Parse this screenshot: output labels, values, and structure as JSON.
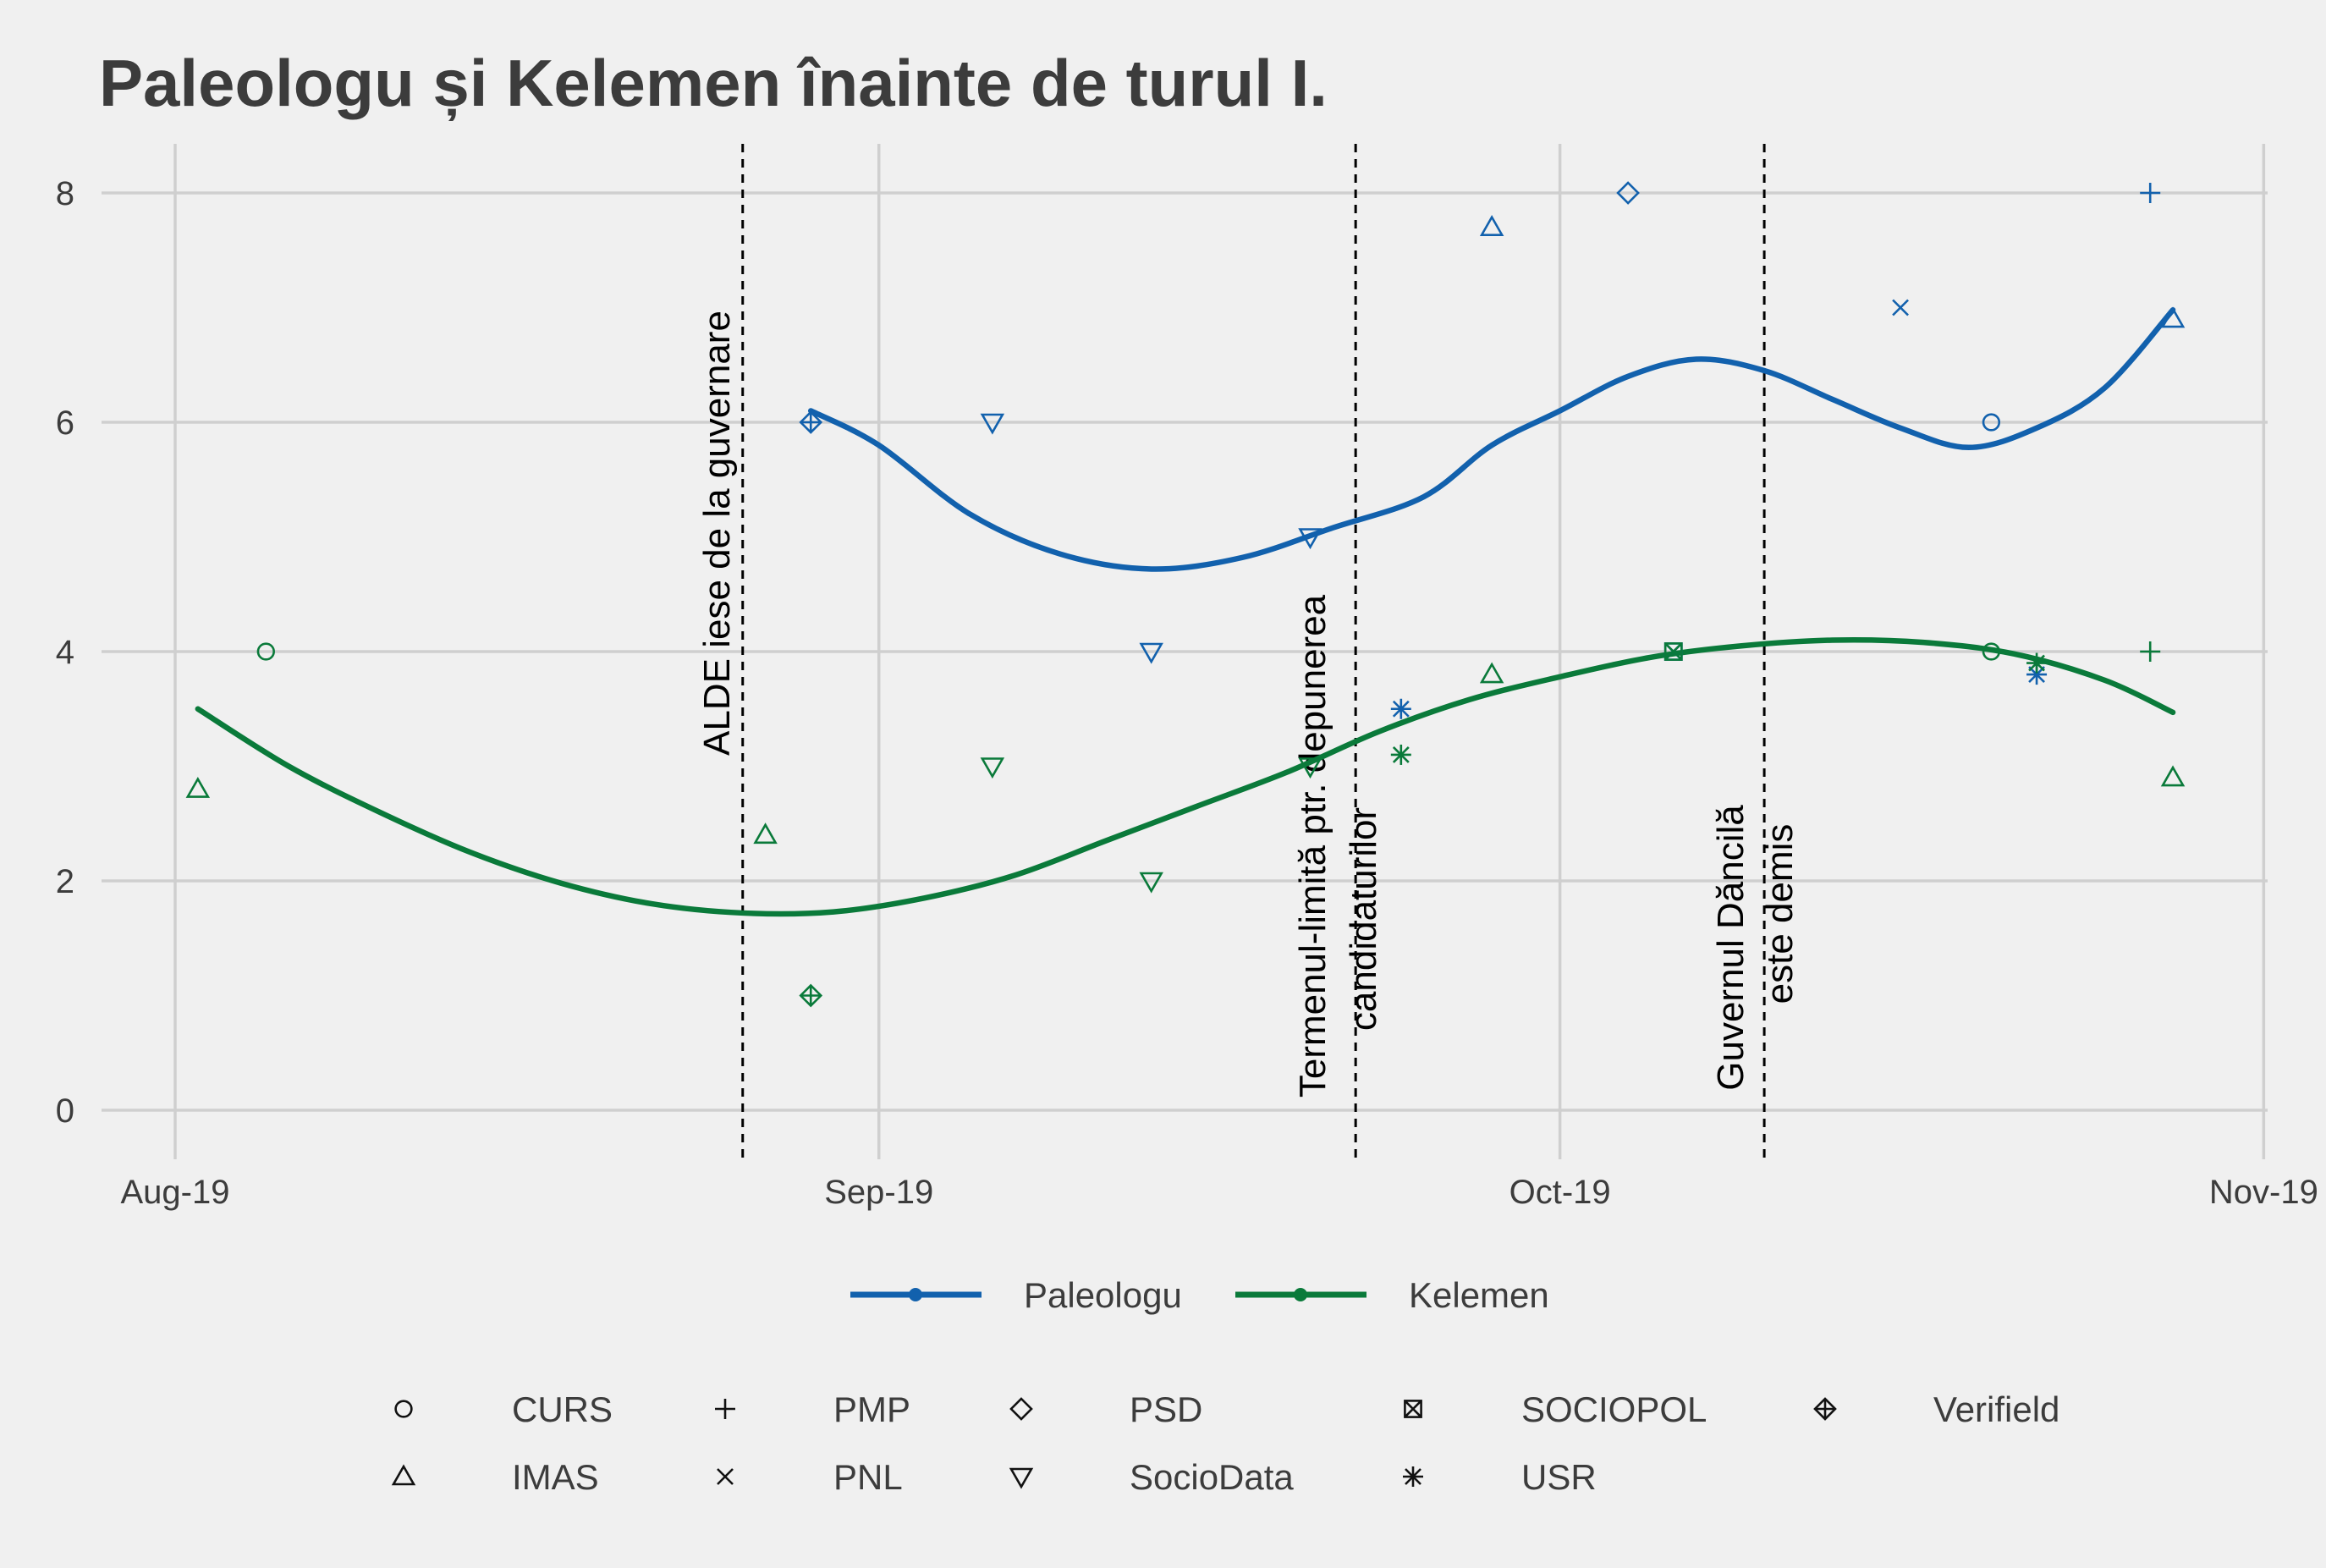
{
  "chart_data": {
    "type": "scatter",
    "title": "Paleologu și Kelemen înainte de turul I.",
    "xlabel": "",
    "ylabel": "",
    "xlim": [
      "2019-08-01",
      "2019-11-01"
    ],
    "ylim": [
      -0.7,
      8.4
    ],
    "x_ticks": [
      {
        "date": "2019-08-01",
        "label": "Aug-19"
      },
      {
        "date": "2019-09-01",
        "label": "Sep-19"
      },
      {
        "date": "2019-10-01",
        "label": "Oct-19"
      },
      {
        "date": "2019-11-01",
        "label": "Nov-19"
      }
    ],
    "y_ticks": [
      0,
      2,
      4,
      6,
      8
    ],
    "grid": true,
    "colors": {
      "Paleologu": "#1261ad",
      "Kelemen": "#0a7a3a"
    },
    "series": [
      {
        "name": "Paleologu",
        "color": "#1261ad",
        "trend": [
          {
            "x": "2019-08-29",
            "y": 6.1
          },
          {
            "x": "2019-09-01",
            "y": 5.8
          },
          {
            "x": "2019-09-05",
            "y": 5.2
          },
          {
            "x": "2019-09-09",
            "y": 4.85
          },
          {
            "x": "2019-09-13",
            "y": 4.72
          },
          {
            "x": "2019-09-17",
            "y": 4.82
          },
          {
            "x": "2019-09-21",
            "y": 5.08
          },
          {
            "x": "2019-09-25",
            "y": 5.35
          },
          {
            "x": "2019-09-28",
            "y": 5.8
          },
          {
            "x": "2019-10-01",
            "y": 6.1
          },
          {
            "x": "2019-10-04",
            "y": 6.4
          },
          {
            "x": "2019-10-07",
            "y": 6.55
          },
          {
            "x": "2019-10-10",
            "y": 6.45
          },
          {
            "x": "2019-10-13",
            "y": 6.2
          },
          {
            "x": "2019-10-16",
            "y": 5.95
          },
          {
            "x": "2019-10-19",
            "y": 5.78
          },
          {
            "x": "2019-10-22",
            "y": 5.95
          },
          {
            "x": "2019-10-25",
            "y": 6.3
          },
          {
            "x": "2019-10-28",
            "y": 6.98
          }
        ]
      },
      {
        "name": "Kelemen",
        "color": "#0a7a3a",
        "trend": [
          {
            "x": "2019-08-02",
            "y": 3.5
          },
          {
            "x": "2019-08-06",
            "y": 3.0
          },
          {
            "x": "2019-08-10",
            "y": 2.6
          },
          {
            "x": "2019-08-14",
            "y": 2.25
          },
          {
            "x": "2019-08-18",
            "y": 1.98
          },
          {
            "x": "2019-08-22",
            "y": 1.8
          },
          {
            "x": "2019-08-26",
            "y": 1.72
          },
          {
            "x": "2019-08-30",
            "y": 1.73
          },
          {
            "x": "2019-09-03",
            "y": 1.85
          },
          {
            "x": "2019-09-07",
            "y": 2.05
          },
          {
            "x": "2019-09-11",
            "y": 2.35
          },
          {
            "x": "2019-09-15",
            "y": 2.65
          },
          {
            "x": "2019-09-19",
            "y": 2.95
          },
          {
            "x": "2019-09-23",
            "y": 3.3
          },
          {
            "x": "2019-09-27",
            "y": 3.58
          },
          {
            "x": "2019-10-01",
            "y": 3.78
          },
          {
            "x": "2019-10-05",
            "y": 3.95
          },
          {
            "x": "2019-10-09",
            "y": 4.05
          },
          {
            "x": "2019-10-13",
            "y": 4.1
          },
          {
            "x": "2019-10-17",
            "y": 4.08
          },
          {
            "x": "2019-10-21",
            "y": 3.98
          },
          {
            "x": "2019-10-25",
            "y": 3.75
          },
          {
            "x": "2019-10-28",
            "y": 3.47
          }
        ]
      }
    ],
    "points": [
      {
        "candidate": "Paleologu",
        "pollster": "Verifield",
        "x": "2019-08-29",
        "y": 6.0
      },
      {
        "candidate": "Paleologu",
        "pollster": "SocioData",
        "x": "2019-09-06",
        "y": 6.0
      },
      {
        "candidate": "Paleologu",
        "pollster": "SocioData",
        "x": "2019-09-13",
        "y": 4.0
      },
      {
        "candidate": "Paleologu",
        "pollster": "SocioData",
        "x": "2019-09-20",
        "y": 5.0
      },
      {
        "candidate": "Paleologu",
        "pollster": "USR",
        "x": "2019-09-24",
        "y": 3.5
      },
      {
        "candidate": "Paleologu",
        "pollster": "IMAS",
        "x": "2019-09-28",
        "y": 7.7
      },
      {
        "candidate": "Paleologu",
        "pollster": "PSD",
        "x": "2019-10-04",
        "y": 8.0
      },
      {
        "candidate": "Paleologu",
        "pollster": "SOCIOPOL",
        "x": "2019-10-06",
        "y": 4.0
      },
      {
        "candidate": "Paleologu",
        "pollster": "PNL",
        "x": "2019-10-16",
        "y": 7.0
      },
      {
        "candidate": "Paleologu",
        "pollster": "CURS",
        "x": "2019-10-20",
        "y": 6.0
      },
      {
        "candidate": "Paleologu",
        "pollster": "USR",
        "x": "2019-10-22",
        "y": 3.8
      },
      {
        "candidate": "Paleologu",
        "pollster": "PMP",
        "x": "2019-10-27",
        "y": 8.0
      },
      {
        "candidate": "Paleologu",
        "pollster": "IMAS",
        "x": "2019-10-28",
        "y": 6.9
      },
      {
        "candidate": "Kelemen",
        "pollster": "IMAS",
        "x": "2019-08-02",
        "y": 2.8
      },
      {
        "candidate": "Kelemen",
        "pollster": "CURS",
        "x": "2019-08-05",
        "y": 4.0
      },
      {
        "candidate": "Kelemen",
        "pollster": "IMAS",
        "x": "2019-08-27",
        "y": 2.4
      },
      {
        "candidate": "Kelemen",
        "pollster": "Verifield",
        "x": "2019-08-29",
        "y": 1.0
      },
      {
        "candidate": "Kelemen",
        "pollster": "SocioData",
        "x": "2019-09-06",
        "y": 3.0
      },
      {
        "candidate": "Kelemen",
        "pollster": "SocioData",
        "x": "2019-09-13",
        "y": 2.0
      },
      {
        "candidate": "Kelemen",
        "pollster": "SocioData",
        "x": "2019-09-20",
        "y": 3.0
      },
      {
        "candidate": "Kelemen",
        "pollster": "USR",
        "x": "2019-09-24",
        "y": 3.1
      },
      {
        "candidate": "Kelemen",
        "pollster": "IMAS",
        "x": "2019-09-28",
        "y": 3.8
      },
      {
        "candidate": "Kelemen",
        "pollster": "SOCIOPOL",
        "x": "2019-10-06",
        "y": 4.0
      },
      {
        "candidate": "Kelemen",
        "pollster": "CURS",
        "x": "2019-10-20",
        "y": 4.0
      },
      {
        "candidate": "Kelemen",
        "pollster": "USR",
        "x": "2019-10-22",
        "y": 3.9
      },
      {
        "candidate": "Kelemen",
        "pollster": "PMP",
        "x": "2019-10-27",
        "y": 4.0
      },
      {
        "candidate": "Kelemen",
        "pollster": "IMAS",
        "x": "2019-10-28",
        "y": 2.9
      }
    ],
    "events": [
      {
        "date": "2019-08-26",
        "lines": [
          "ALDE iese de la guvernare"
        ]
      },
      {
        "date": "2019-09-22",
        "lines": [
          "Termenul-limită ptr. depunerea",
          "candidaturilor"
        ]
      },
      {
        "date": "2019-10-10",
        "lines": [
          "Guvernul Dăncilă",
          "este demis"
        ]
      }
    ],
    "legend": {
      "placement": "bottom",
      "candidates": [
        {
          "name": "Paleologu",
          "color": "#1261ad"
        },
        {
          "name": "Kelemen",
          "color": "#0a7a3a"
        }
      ],
      "pollsters": [
        {
          "name": "CURS",
          "shape": "circle"
        },
        {
          "name": "PMP",
          "shape": "plus"
        },
        {
          "name": "PSD",
          "shape": "diamond"
        },
        {
          "name": "SOCIOPOL",
          "shape": "square-cross"
        },
        {
          "name": "Verifield",
          "shape": "diamond-plus"
        },
        {
          "name": "IMAS",
          "shape": "triangle-up"
        },
        {
          "name": "PNL",
          "shape": "cross"
        },
        {
          "name": "SocioData",
          "shape": "triangle-down"
        },
        {
          "name": "USR",
          "shape": "asterisk"
        }
      ]
    }
  }
}
